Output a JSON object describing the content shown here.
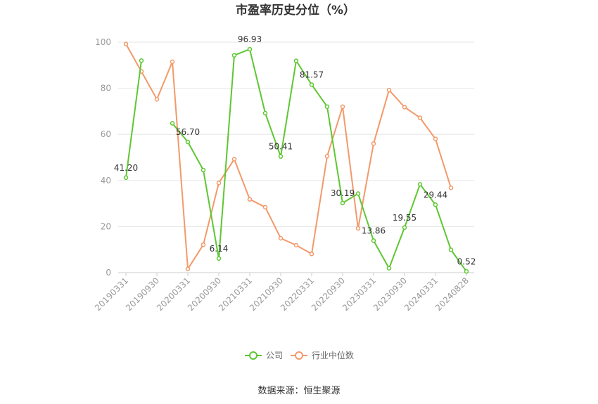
{
  "chart_data": {
    "type": "line",
    "title": "市盈率历史分位（%）",
    "x": [
      "20190331",
      "20190630",
      "20190930",
      "20191231",
      "20200331",
      "20200630",
      "20200930",
      "20201231",
      "20210331",
      "20210630",
      "20210930",
      "20211231",
      "20220331",
      "20220630",
      "20220930",
      "20221231",
      "20230331",
      "20230630",
      "20230930",
      "20231231",
      "20240331",
      "20240630",
      "20240828"
    ],
    "x_tick_labels": [
      "20190331",
      "20190930",
      "20200331",
      "20200930",
      "20210331",
      "20210930",
      "20220331",
      "20220930",
      "20230331",
      "20230930",
      "20240331",
      "20240828"
    ],
    "ylim": [
      0,
      100
    ],
    "y_ticks": [
      "0",
      "20",
      "40",
      "60",
      "80",
      "100"
    ],
    "grid": true,
    "legend_position": "bottom",
    "series": [
      {
        "name": "公司",
        "color": "#5ec732",
        "values": [
          41.2,
          92,
          null,
          64.8,
          56.7,
          44.5,
          6.14,
          94.3,
          96.93,
          69.2,
          50.41,
          91.9,
          81.57,
          72.0,
          30.19,
          34.3,
          13.86,
          1.9,
          19.55,
          38.3,
          29.44,
          9.9,
          0.52
        ],
        "labels": [
          "41.20",
          null,
          null,
          null,
          "56.70",
          null,
          "6.14",
          null,
          "96.93",
          null,
          "50.41",
          null,
          "81.57",
          null,
          "30.19",
          null,
          "13.86",
          null,
          "19.55",
          null,
          "29.44",
          null,
          "0.52"
        ]
      },
      {
        "name": "行业中位数",
        "color": "#f3996a",
        "values": [
          99.2,
          87.3,
          75.2,
          91.5,
          1.6,
          12.1,
          38.9,
          49.2,
          31.8,
          28.4,
          14.9,
          11.9,
          8.1,
          50.5,
          72.0,
          19.2,
          56.0,
          79.2,
          71.8,
          67.2,
          58.0,
          36.8,
          null
        ]
      }
    ]
  },
  "source_text": "数据来源：恒生聚源"
}
